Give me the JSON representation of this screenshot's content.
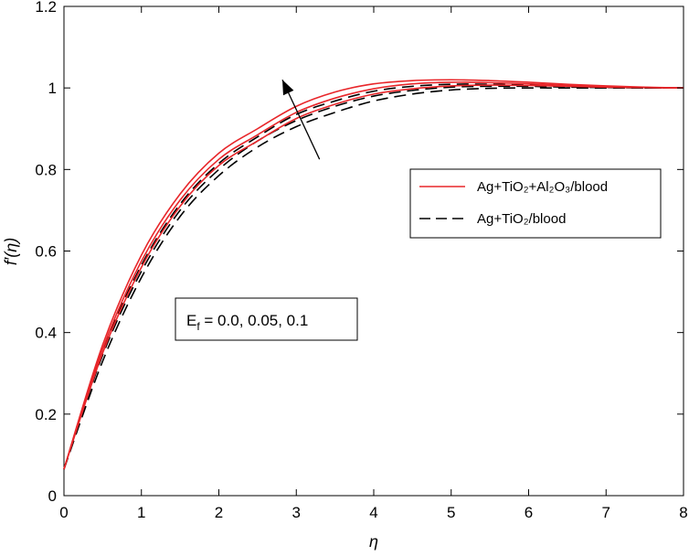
{
  "chart_data": {
    "type": "line",
    "xlabel": "η",
    "ylabel": "f′(η)",
    "xlim": [
      0,
      8
    ],
    "ylim": [
      0,
      1.2
    ],
    "x_ticks": [
      "0",
      "1",
      "2",
      "3",
      "4",
      "5",
      "6",
      "7",
      "8"
    ],
    "y_ticks": [
      "0",
      "0.2",
      "0.4",
      "0.6",
      "0.8",
      "1",
      "1.2"
    ],
    "grid": false,
    "legend": {
      "placement": "right-center",
      "entries": [
        {
          "label": "Ag+TiO₂+Al₂O₃/blood",
          "color": "#e8262a",
          "style": "solid"
        },
        {
          "label": "Ag+TiO₂/blood",
          "color": "#000000",
          "style": "dashed"
        }
      ]
    },
    "annotation": {
      "text": "E_f = 0.0, 0.05, 0.1",
      "arrow_direction": "up-left",
      "meaning": "increasing"
    },
    "x": [
      0,
      0.5,
      1,
      1.5,
      2,
      2.5,
      3,
      3.5,
      4,
      4.5,
      5,
      5.5,
      6,
      6.5,
      7,
      7.5,
      8
    ],
    "series": [
      {
        "group": "Ag+TiO₂+Al₂O₃/blood",
        "Ef": "0.0",
        "style": "solid",
        "color": "#e8262a",
        "values": [
          0.065,
          0.35,
          0.56,
          0.71,
          0.81,
          0.87,
          0.925,
          0.96,
          0.985,
          0.998,
          1.005,
          1.007,
          1.006,
          1.004,
          1.002,
          1.001,
          1.0
        ]
      },
      {
        "group": "Ag+TiO₂+Al₂O₃/blood",
        "Ef": "0.05",
        "style": "solid",
        "color": "#e8262a",
        "values": [
          0.065,
          0.36,
          0.575,
          0.725,
          0.825,
          0.885,
          0.94,
          0.975,
          0.998,
          1.01,
          1.014,
          1.013,
          1.01,
          1.006,
          1.003,
          1.001,
          1.0
        ]
      },
      {
        "group": "Ag+TiO₂+Al₂O₃/blood",
        "Ef": "0.1",
        "style": "solid",
        "color": "#e8262a",
        "values": [
          0.065,
          0.37,
          0.59,
          0.74,
          0.84,
          0.9,
          0.955,
          0.99,
          1.01,
          1.018,
          1.02,
          1.018,
          1.014,
          1.009,
          1.005,
          1.002,
          1.0
        ]
      },
      {
        "group": "Ag+TiO₂/blood",
        "Ef": "0.0",
        "style": "dashed",
        "color": "#000000",
        "values": [
          0.065,
          0.33,
          0.535,
          0.685,
          0.785,
          0.855,
          0.905,
          0.94,
          0.968,
          0.985,
          0.995,
          0.999,
          1.0,
          1.0,
          1.0,
          1.0,
          1.0
        ]
      },
      {
        "group": "Ag+TiO₂/blood",
        "Ef": "0.05",
        "style": "dashed",
        "color": "#000000",
        "values": [
          0.065,
          0.345,
          0.55,
          0.7,
          0.8,
          0.87,
          0.92,
          0.955,
          0.98,
          0.994,
          1.002,
          1.004,
          1.004,
          1.002,
          1.001,
          1.0,
          1.0
        ]
      },
      {
        "group": "Ag+TiO₂/blood",
        "Ef": "0.1",
        "style": "dashed",
        "color": "#000000",
        "values": [
          0.065,
          0.355,
          0.565,
          0.715,
          0.815,
          0.88,
          0.935,
          0.968,
          0.992,
          1.004,
          1.009,
          1.009,
          1.007,
          1.004,
          1.002,
          1.001,
          1.0
        ]
      }
    ]
  }
}
